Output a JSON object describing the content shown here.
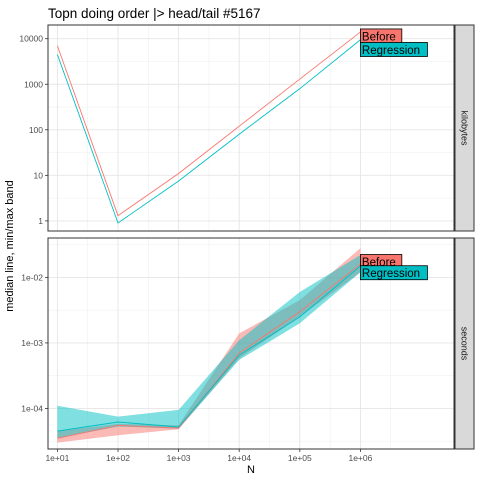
{
  "chart_data": {
    "type": "line",
    "title": "Topn doing order |> head/tail #5167",
    "xlabel": "N",
    "ylabel": "median line, min/max band",
    "x_scale": "log10",
    "x_ticks": [
      10,
      100,
      1000,
      10000,
      100000,
      1000000
    ],
    "x_tick_labels": [
      "1e+01",
      "1e+02",
      "1e+03",
      "1e+04",
      "1e+05",
      "1e+06"
    ],
    "xlim": [
      7,
      35000000
    ],
    "grid": true,
    "colors": {
      "Before": "#F8766D",
      "Regression": "#00BFC4"
    },
    "panels": [
      {
        "strip": "kilobytes",
        "y_scale": "log10",
        "ylim": [
          0.6,
          20000
        ],
        "y_ticks": [
          1,
          10,
          100,
          1000,
          10000
        ],
        "y_tick_labels": [
          "1",
          "10",
          "100",
          "1000",
          "10000"
        ],
        "series": [
          {
            "name": "Before",
            "x": [
              10,
              100,
              1000,
              10000,
              100000,
              1000000
            ],
            "median": [
              7000,
              1.3,
              11,
              120,
              1300,
              14000
            ]
          },
          {
            "name": "Regression",
            "x": [
              10,
              100,
              1000,
              10000,
              100000,
              1000000
            ],
            "median": [
              4500,
              0.9,
              7.5,
              80,
              800,
              9500
            ]
          }
        ],
        "annotations": [
          {
            "label": "Before",
            "x": 1000000,
            "y": 11500
          },
          {
            "label": "Regression",
            "x": 1000000,
            "y": 5800
          }
        ]
      },
      {
        "strip": "seconds",
        "y_scale": "log10",
        "ylim": [
          2.4e-05,
          0.04
        ],
        "y_ticks": [
          0.0001,
          0.001,
          0.01
        ],
        "y_tick_labels": [
          "1e-04",
          "1e-03",
          "1e-02"
        ],
        "series": [
          {
            "name": "Before",
            "x": [
              10,
              100,
              1000,
              10000,
              100000,
              1000000
            ],
            "median": [
              3.5e-05,
              5.5e-05,
              5e-05,
              0.0007,
              0.003,
              0.016
            ],
            "min": [
              3e-05,
              3.9e-05,
              4.8e-05,
              0.00058,
              0.0025,
              0.012
            ],
            "max": [
              4.5e-05,
              5.8e-05,
              5.5e-05,
              0.0014,
              0.0045,
              0.028
            ]
          },
          {
            "name": "Regression",
            "x": [
              10,
              100,
              1000,
              10000,
              100000,
              1000000
            ],
            "median": [
              4.5e-05,
              6.2e-05,
              5.2e-05,
              0.00065,
              0.0025,
              0.015
            ],
            "min": [
              3.5e-05,
              5.3e-05,
              4.9e-05,
              0.00055,
              0.002,
              0.012
            ],
            "max": [
              0.00011,
              7.5e-05,
              9.5e-05,
              0.0011,
              0.006,
              0.022
            ]
          }
        ],
        "annotations": [
          {
            "label": "Before",
            "x": 1000000,
            "y": 0.0175
          },
          {
            "label": "Regression",
            "x": 1000000,
            "y": 0.0118
          }
        ]
      }
    ]
  }
}
